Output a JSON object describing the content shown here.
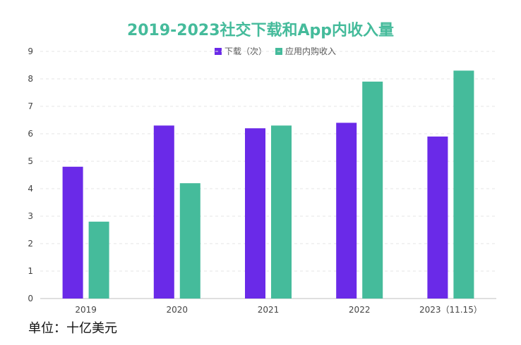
{
  "chart_data": {
    "type": "bar",
    "title": "2019-2023社交下载和App内收入量",
    "categories": [
      "2019",
      "2020",
      "2021",
      "2022",
      "2023（11.15）"
    ],
    "series": [
      {
        "name": "下载（次）",
        "values": [
          4.8,
          6.3,
          6.2,
          6.4,
          5.9
        ]
      },
      {
        "name": "应用内购收入",
        "values": [
          2.8,
          4.2,
          6.3,
          7.9,
          8.3
        ]
      }
    ],
    "ylim": [
      0,
      9
    ],
    "yticks": [
      0,
      1,
      2,
      3,
      4,
      5,
      6,
      7,
      8,
      9
    ],
    "grid": true,
    "legend_position": "top-center",
    "xlabel": "",
    "ylabel": ""
  },
  "colors": {
    "title": "#45bb9b",
    "downloads": "#6a2ae8",
    "revenue": "#45bb9b",
    "grid": "#e6e6e6",
    "axis": "#bfbfbf"
  },
  "footer": {
    "unit_label": "单位：十亿美元"
  }
}
